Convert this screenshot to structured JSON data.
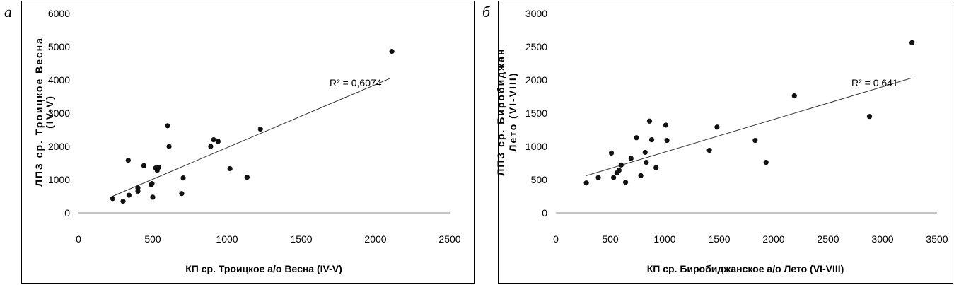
{
  "chart_data": [
    {
      "type": "scatter",
      "panel_label": "а",
      "xlabel": "КП ср. Троицкое а/о Весна (IV-V)",
      "ylabel_line1": "ЛПЗ ср. Троицкое Весна",
      "ylabel_line2": "(IV-V)",
      "xlim": [
        0,
        2500
      ],
      "ylim": [
        0,
        6000
      ],
      "xticks": [
        "0",
        "500",
        "1000",
        "1500",
        "2000",
        "2500"
      ],
      "yticks": [
        "0",
        "1000",
        "2000",
        "3000",
        "4000",
        "5000",
        "6000"
      ],
      "r2_label": "R² = 0,6074",
      "trendline": {
        "x": [
          230,
          2100
        ],
        "y": [
          500,
          4050
        ]
      },
      "points": [
        [
          230,
          430
        ],
        [
          300,
          350
        ],
        [
          340,
          530
        ],
        [
          335,
          1580
        ],
        [
          400,
          650
        ],
        [
          400,
          750
        ],
        [
          440,
          1420
        ],
        [
          490,
          850
        ],
        [
          495,
          880
        ],
        [
          500,
          470
        ],
        [
          520,
          1350
        ],
        [
          530,
          1280
        ],
        [
          540,
          1370
        ],
        [
          600,
          2620
        ],
        [
          610,
          2000
        ],
        [
          695,
          580
        ],
        [
          705,
          1050
        ],
        [
          890,
          2000
        ],
        [
          910,
          2200
        ],
        [
          940,
          2150
        ],
        [
          1020,
          1330
        ],
        [
          1135,
          1070
        ],
        [
          1225,
          2520
        ],
        [
          2110,
          4860
        ]
      ],
      "grid": false
    },
    {
      "type": "scatter",
      "panel_label": "б",
      "xlabel": "КП ср. Биробиджанское а/о Лето (VI-VIII)",
      "ylabel_line1": "ЛПЗ ср. Биробиджан",
      "ylabel_line2": "Лето (VI-VIII)",
      "xlim": [
        0,
        3500
      ],
      "ylim": [
        0,
        3000
      ],
      "xticks": [
        "0",
        "500",
        "1000",
        "1500",
        "2000",
        "2500",
        "3000",
        "3500"
      ],
      "yticks": [
        "0",
        "500",
        "1000",
        "1500",
        "2000",
        "2500",
        "3000"
      ],
      "r2_label": "R² = 0,641",
      "trendline": {
        "x": [
          280,
          3270
        ],
        "y": [
          560,
          2030
        ]
      },
      "points": [
        [
          280,
          450
        ],
        [
          390,
          530
        ],
        [
          510,
          900
        ],
        [
          530,
          530
        ],
        [
          560,
          600
        ],
        [
          580,
          640
        ],
        [
          600,
          720
        ],
        [
          640,
          460
        ],
        [
          690,
          820
        ],
        [
          740,
          1130
        ],
        [
          780,
          560
        ],
        [
          820,
          910
        ],
        [
          830,
          760
        ],
        [
          860,
          1380
        ],
        [
          880,
          1100
        ],
        [
          920,
          680
        ],
        [
          1010,
          1320
        ],
        [
          1020,
          1090
        ],
        [
          1410,
          940
        ],
        [
          1480,
          1290
        ],
        [
          1830,
          1090
        ],
        [
          1930,
          760
        ],
        [
          2190,
          1760
        ],
        [
          2880,
          1450
        ],
        [
          3270,
          2560
        ]
      ],
      "grid": false
    }
  ]
}
